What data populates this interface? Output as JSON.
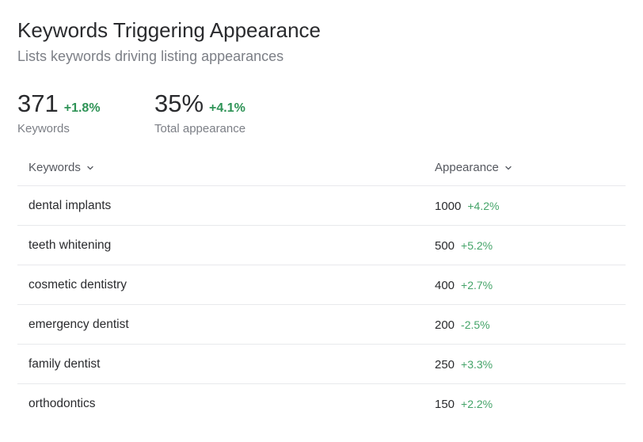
{
  "header": {
    "title": "Keywords Triggering Appearance",
    "subtitle": "Lists keywords driving listing appearances"
  },
  "metrics": [
    {
      "value": "371",
      "change": "+1.8%",
      "label": "Keywords"
    },
    {
      "value": "35%",
      "change": "+4.1%",
      "label": "Total appearance"
    }
  ],
  "table": {
    "columns": [
      {
        "label": "Keywords",
        "icon": "chevron-down-icon"
      },
      {
        "label": "Appearance",
        "icon": "chevron-down-icon"
      }
    ],
    "rows": [
      {
        "keyword": "dental implants",
        "appearance": "1000",
        "change": "+4.2%"
      },
      {
        "keyword": "teeth whitening",
        "appearance": "500",
        "change": "+5.2%"
      },
      {
        "keyword": "cosmetic dentistry",
        "appearance": "400",
        "change": "+2.7%"
      },
      {
        "keyword": "emergency dentist",
        "appearance": "200",
        "change": "-2.5%"
      },
      {
        "keyword": "family dentist",
        "appearance": "250",
        "change": "+3.3%"
      },
      {
        "keyword": "orthodontics",
        "appearance": "150",
        "change": "+2.2%"
      }
    ]
  },
  "colors": {
    "positive": "#2e9356",
    "positive_light": "#45a469",
    "text": "#2a2b2e",
    "muted": "#7c7f86",
    "divider": "#e8e9ec"
  }
}
